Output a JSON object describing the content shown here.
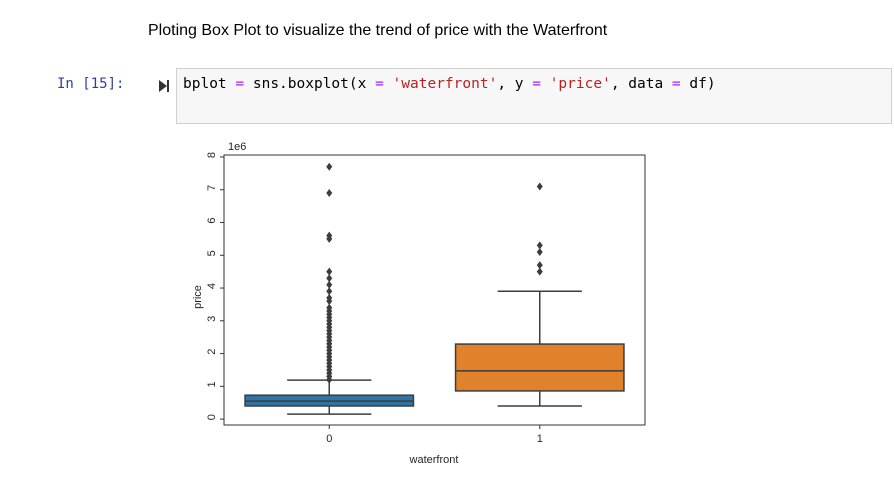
{
  "markdown": "Ploting Box Plot to visualize the trend of price with the Waterfront",
  "cell": {
    "prompt": "In [15]:",
    "code": [
      "bplot ",
      "=",
      " sns.boxplot(x ",
      "=",
      " 'waterfront'",
      ", y ",
      "=",
      " 'price'",
      ", data ",
      "=",
      " df)"
    ]
  },
  "chart_data": {
    "type": "box",
    "xlabel": "waterfront",
    "ylabel": "price",
    "offset_label": "1e6",
    "categories": [
      "0",
      "1"
    ],
    "boxes": [
      {
        "color": "#3274a1",
        "whislo": 0.15,
        "q1": 0.4,
        "med": 0.55,
        "q3": 0.73,
        "whishi": 1.19,
        "fliers": [
          1.2,
          1.3,
          1.4,
          1.5,
          1.6,
          1.7,
          1.8,
          1.9,
          2.0,
          2.1,
          2.2,
          2.3,
          2.4,
          2.5,
          2.6,
          2.7,
          2.8,
          2.9,
          3.0,
          3.1,
          3.2,
          3.3,
          3.4,
          3.6,
          3.7,
          3.9,
          4.1,
          4.3,
          4.5,
          5.5,
          5.6,
          6.9,
          7.7
        ]
      },
      {
        "color": "#e1812c",
        "whislo": 0.4,
        "q1": 0.86,
        "med": 1.47,
        "q3": 2.29,
        "whishi": 3.9,
        "fliers": [
          4.5,
          4.7,
          5.1,
          5.3,
          7.1
        ]
      }
    ],
    "ylim": [
      -0.18,
      8.06
    ],
    "yticks": [
      0,
      1,
      2,
      3,
      4,
      5,
      6,
      7,
      8
    ]
  }
}
